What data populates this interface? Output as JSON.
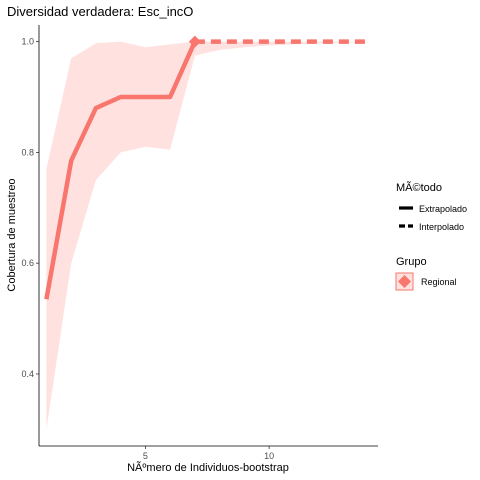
{
  "chart_data": {
    "type": "line",
    "title": "Diversidad verdadera: Esc_incO",
    "xlabel": "NÃºmero de Individuos-bootstrap",
    "ylabel": "Cobertura de muestreo",
    "xlim": [
      0.7,
      14.4
    ],
    "ylim": [
      0.27,
      1.03
    ],
    "x_ticks": [
      5,
      10
    ],
    "y_ticks": [
      0.4,
      0.6,
      0.8,
      1.0
    ],
    "y_tick_labels": [
      "0.4",
      "0.6",
      "0.8",
      "1.0"
    ],
    "grid": false,
    "series": [
      {
        "name": "Regional",
        "color": "#F8766D",
        "band_color": "#FFE1E0",
        "observed_x": 7,
        "observed_y": 1.0,
        "interpolated": {
          "x": [
            1,
            2,
            3,
            4,
            5,
            6,
            7
          ],
          "y": [
            0.535,
            0.785,
            0.88,
            0.9,
            0.9,
            0.9,
            1.0
          ],
          "lower": [
            0.3,
            0.6,
            0.75,
            0.8,
            0.81,
            0.805,
            0.975
          ],
          "upper": [
            0.77,
            0.97,
            0.997,
            1.0,
            0.99,
            0.995,
            1.0
          ]
        },
        "extrapolated": {
          "x": [
            7,
            8,
            9,
            10,
            11,
            12,
            13,
            14
          ],
          "y": [
            1.0,
            1.0,
            1.0,
            1.0,
            1.0,
            1.0,
            1.0,
            1.0
          ],
          "lower": [
            0.975,
            0.985,
            0.99,
            0.993,
            0.995,
            0.997,
            0.998,
            0.999
          ],
          "upper": [
            1.0,
            1.0,
            1.0,
            1.0,
            1.0,
            1.0,
            1.0,
            1.0
          ]
        }
      }
    ],
    "legend": {
      "placement": "right",
      "method_title": "MÃ©todo",
      "method_items": [
        {
          "label": "Extrapolado",
          "line_style": "solid"
        },
        {
          "label": "Interpolado",
          "line_style": "dashed"
        }
      ],
      "group_title": "Grupo",
      "group_items": [
        {
          "label": "Regional",
          "color": "#F8766D"
        }
      ]
    }
  }
}
